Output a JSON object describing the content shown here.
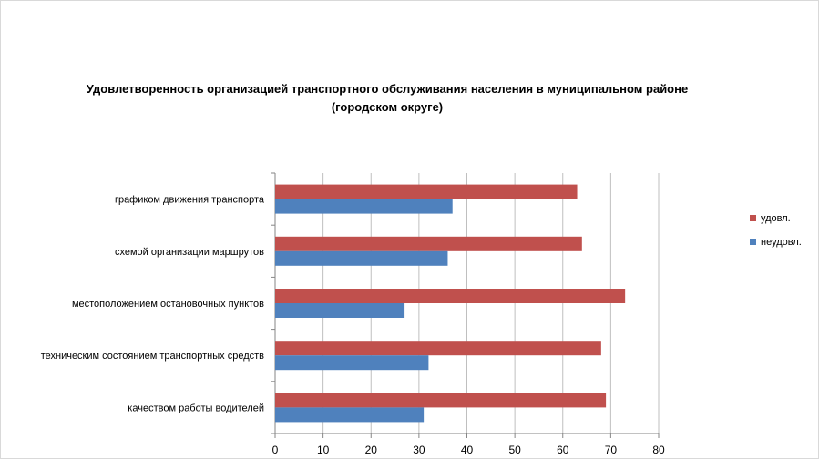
{
  "chart_data": {
    "type": "bar",
    "orientation": "horizontal",
    "title_lines": [
      "Удовлетворенность организацией транспортного обслуживания населения в муниципальном районе",
      "(городском округе)"
    ],
    "categories": [
      "графиком движения  транспорта",
      "схемой организации маршрутов",
      "местоположением  остановочных пунктов",
      "техническим  состоянием транспортных средств",
      "качеством  работы водителей"
    ],
    "series": [
      {
        "name": "удовл.",
        "color": "#c0504d",
        "values": [
          63,
          64,
          73,
          68,
          69
        ]
      },
      {
        "name": "неудовл.",
        "color": "#4f81bd",
        "values": [
          37,
          36,
          27,
          32,
          31
        ]
      }
    ],
    "xlim": [
      0,
      80
    ],
    "xticks": [
      "0",
      "10",
      "20",
      "30",
      "40",
      "50",
      "60",
      "70",
      "80"
    ],
    "legend_position": "right",
    "grid": true
  }
}
